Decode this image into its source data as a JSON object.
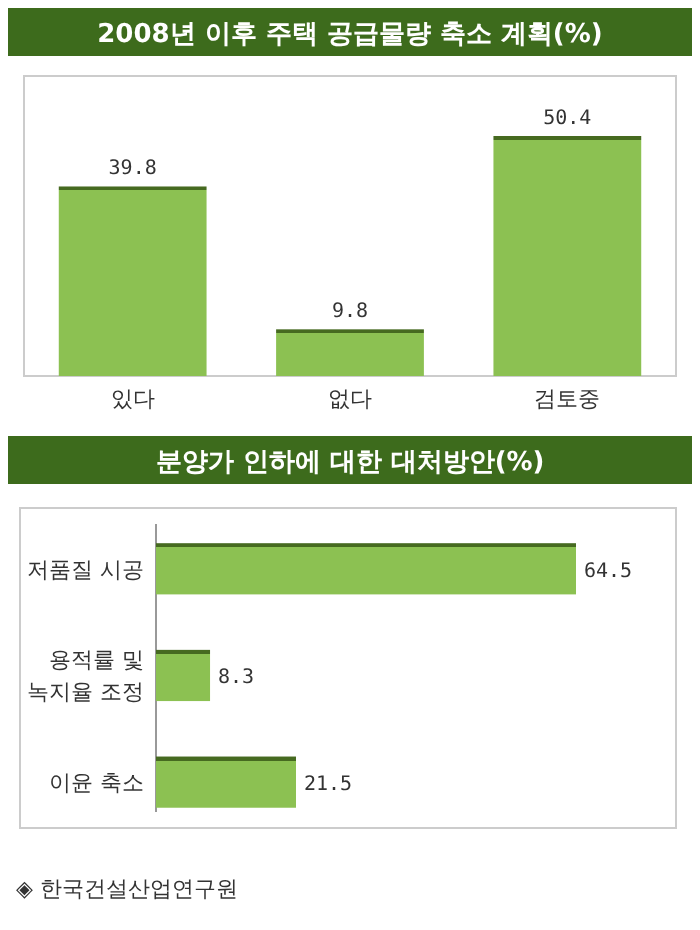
{
  "chart_data": [
    {
      "type": "bar",
      "title": "2008년 이후 주택 공급물량 축소 계획(%)",
      "categories": [
        "있다",
        "없다",
        "검토중"
      ],
      "values": [
        39.8,
        9.8,
        50.4
      ],
      "color": "#8cc152",
      "data_labels": true
    },
    {
      "type": "bar",
      "orientation": "horizontal",
      "title": "분양가 인하에 대한 대처방안(%)",
      "categories": [
        "저품질 시공",
        "용적률 및 녹지율 조정",
        "이윤 축소"
      ],
      "values": [
        64.5,
        8.3,
        21.5
      ],
      "color": "#8cc152",
      "data_labels": true,
      "annotations": [
        "◈ 한국건설산업연구원"
      ]
    }
  ]
}
